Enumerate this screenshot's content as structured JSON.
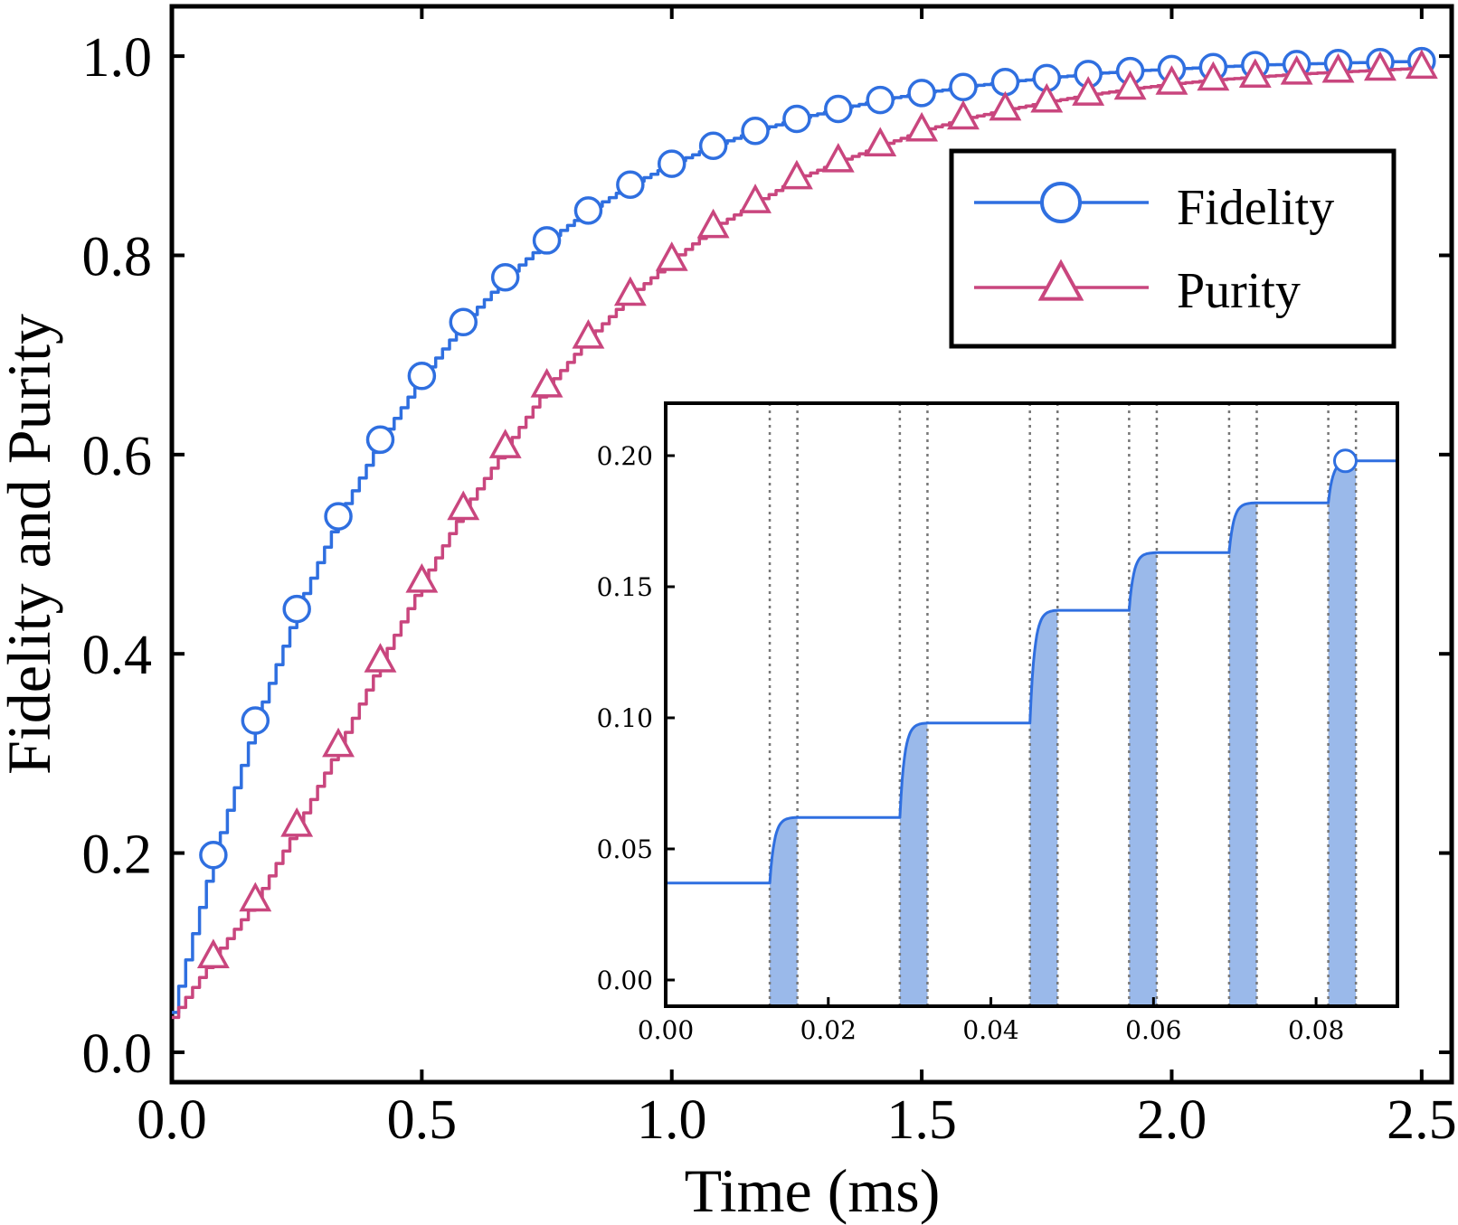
{
  "chart_data": [
    {
      "type": "line",
      "role": "main",
      "title": "",
      "xlabel": "Time (ms)",
      "ylabel": "Fidelity and Purity",
      "xlim": [
        0.0,
        2.56
      ],
      "ylim": [
        -0.03,
        1.05
      ],
      "xticks": [
        0.0,
        0.5,
        1.0,
        1.5,
        2.0,
        2.5
      ],
      "xtick_labels": [
        "0.0",
        "0.5",
        "1.0",
        "1.5",
        "2.0",
        "2.5"
      ],
      "yticks": [
        0.0,
        0.2,
        0.4,
        0.6,
        0.8,
        1.0
      ],
      "ytick_labels": [
        "0.0",
        "0.2",
        "0.4",
        "0.6",
        "0.8",
        "1.0"
      ],
      "grid": false,
      "legend": "top-right",
      "steps_per_marker": 6,
      "series": [
        {
          "name": "Fidelity",
          "color": "#2f6fe0",
          "marker": "circle",
          "start": [
            0.0,
            0.04
          ],
          "x": [
            0.083,
            0.167,
            0.25,
            0.333,
            0.417,
            0.5,
            0.583,
            0.667,
            0.75,
            0.833,
            0.917,
            1.0,
            1.083,
            1.167,
            1.25,
            1.333,
            1.417,
            1.5,
            1.583,
            1.667,
            1.75,
            1.833,
            1.917,
            2.0,
            2.083,
            2.167,
            2.25,
            2.333,
            2.417,
            2.5
          ],
          "y": [
            0.198,
            0.333,
            0.445,
            0.538,
            0.615,
            0.679,
            0.733,
            0.778,
            0.815,
            0.845,
            0.871,
            0.892,
            0.91,
            0.925,
            0.937,
            0.947,
            0.956,
            0.963,
            0.969,
            0.974,
            0.978,
            0.982,
            0.985,
            0.987,
            0.989,
            0.991,
            0.992,
            0.993,
            0.994,
            0.995
          ]
        },
        {
          "name": "Purity",
          "color": "#c9467e",
          "marker": "triangle",
          "start": [
            0.0,
            0.035
          ],
          "x": [
            0.083,
            0.167,
            0.25,
            0.333,
            0.417,
            0.5,
            0.583,
            0.667,
            0.75,
            0.833,
            0.917,
            1.0,
            1.083,
            1.167,
            1.25,
            1.333,
            1.417,
            1.5,
            1.583,
            1.667,
            1.75,
            1.833,
            1.917,
            2.0,
            2.083,
            2.167,
            2.25,
            2.333,
            2.417,
            2.5
          ],
          "y": [
            0.095,
            0.152,
            0.227,
            0.307,
            0.392,
            0.472,
            0.545,
            0.607,
            0.668,
            0.717,
            0.76,
            0.795,
            0.828,
            0.853,
            0.877,
            0.894,
            0.91,
            0.925,
            0.937,
            0.946,
            0.954,
            0.961,
            0.967,
            0.972,
            0.976,
            0.979,
            0.982,
            0.984,
            0.986,
            0.988
          ]
        }
      ]
    },
    {
      "type": "line",
      "role": "inset",
      "title": "",
      "xlabel": "",
      "ylabel": "",
      "xlim": [
        0.0,
        0.09
      ],
      "ylim": [
        -0.01,
        0.22
      ],
      "xticks": [
        0.0,
        0.02,
        0.04,
        0.06,
        0.08
      ],
      "xtick_labels": [
        "0.00",
        "0.02",
        "0.04",
        "0.06",
        "0.08"
      ],
      "yticks": [
        0.0,
        0.05,
        0.1,
        0.15,
        0.2
      ],
      "ytick_labels": [
        "0.00",
        "0.05",
        "0.10",
        "0.15",
        "0.20"
      ],
      "grid": false,
      "series": [
        {
          "name": "Fidelity",
          "color": "#2f6fe0",
          "fill_color": "#9ab9ea",
          "start_level": 0.037,
          "pulses": [
            {
              "start": 0.0128,
              "end": 0.0162,
              "level_after": 0.062
            },
            {
              "start": 0.0288,
              "end": 0.0322,
              "level_after": 0.098
            },
            {
              "start": 0.0448,
              "end": 0.0482,
              "level_after": 0.141
            },
            {
              "start": 0.057,
              "end": 0.0604,
              "level_after": 0.163
            },
            {
              "start": 0.0693,
              "end": 0.0727,
              "level_after": 0.182
            },
            {
              "start": 0.0815,
              "end": 0.0849,
              "level_after": 0.198
            }
          ],
          "end_x": 0.09,
          "marker_point": [
            0.0836,
            0.198
          ]
        }
      ]
    }
  ]
}
